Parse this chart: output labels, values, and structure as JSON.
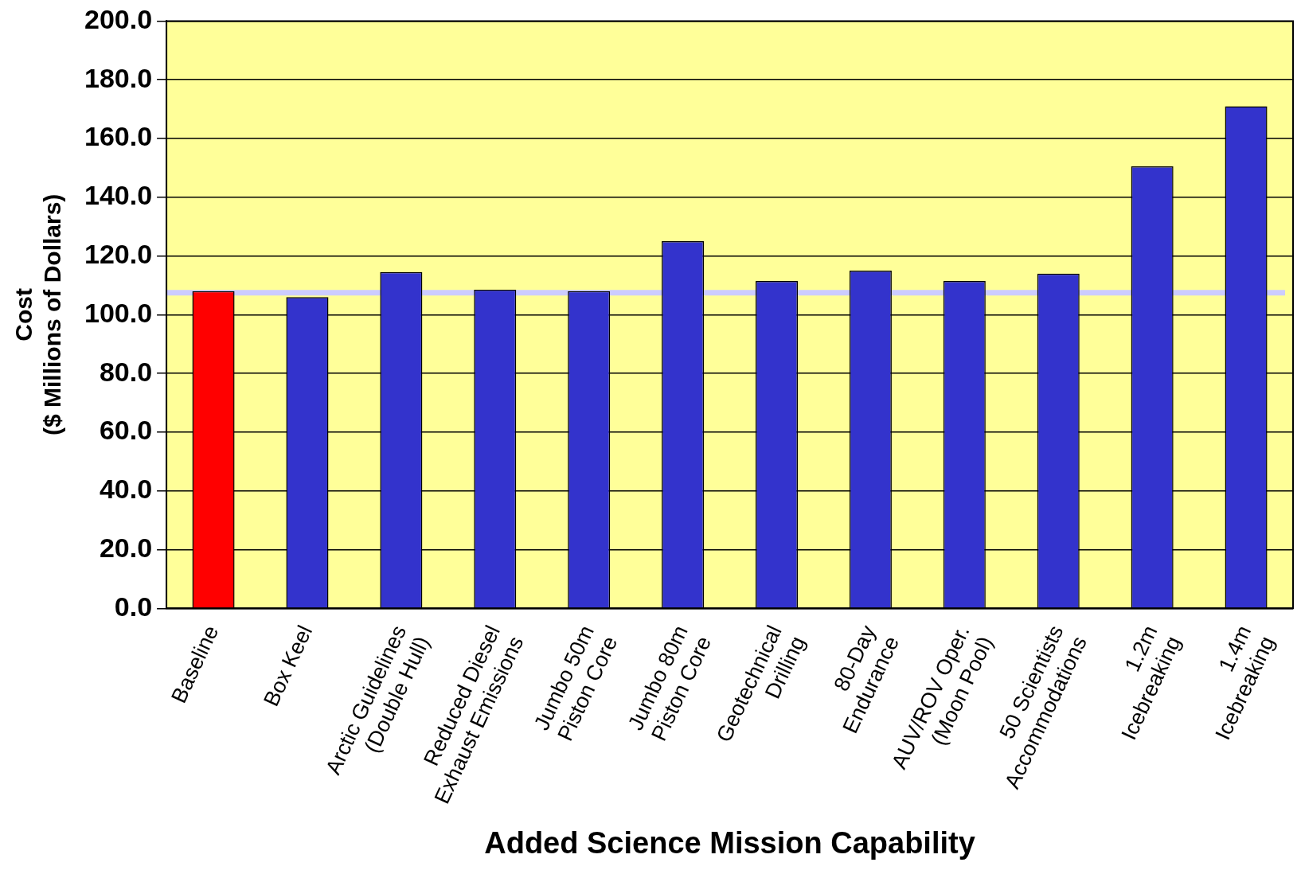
{
  "chart_data": {
    "type": "bar",
    "xlabel": "Added Science Mission Capability",
    "ylabel": "Cost\n($ Millions of Dollars)",
    "categories": [
      "Baseline",
      "Box Keel",
      "Arctic Guidelines\n(Double Hull)",
      "Reduced Diesel\nExhaust Emissions",
      "Jumbo 50m\nPiston Core",
      "Jumbo 80m\nPiston Core",
      "Geotechnical\nDrilling",
      "80-Day\nEndurance",
      "AUV/ROV Oper.\n(Moon Pool)",
      "50 Scientists\nAccommodations",
      "1.2m\nIcebreaking",
      "1.4m\nIcebreaking"
    ],
    "values": [
      108,
      106,
      114.5,
      108.5,
      108,
      125,
      111.5,
      115,
      111.5,
      114,
      150.5,
      171
    ],
    "colors": [
      "#ff0000",
      "#3333cc",
      "#3333cc",
      "#3333cc",
      "#3333cc",
      "#3333cc",
      "#3333cc",
      "#3333cc",
      "#3333cc",
      "#3333cc",
      "#3333cc",
      "#3333cc"
    ],
    "ylim": [
      0,
      200
    ],
    "yticks": [
      {
        "value": 0,
        "label": "0.0"
      },
      {
        "value": 20,
        "label": "20.0"
      },
      {
        "value": 40,
        "label": "40.0"
      },
      {
        "value": 60,
        "label": "60.0"
      },
      {
        "value": 80,
        "label": "80.0"
      },
      {
        "value": 100,
        "label": "100.0"
      },
      {
        "value": 120,
        "label": "120.0"
      },
      {
        "value": 140,
        "label": "140.0"
      },
      {
        "value": 160,
        "label": "160.0"
      },
      {
        "value": 180,
        "label": "180.0"
      },
      {
        "value": 200,
        "label": "200.0"
      }
    ],
    "ref_lines": [
      {
        "axis": "y",
        "value": 107.5,
        "color": "#ccccff",
        "line_style": "solid"
      }
    ],
    "grid": "y",
    "legend": false
  }
}
